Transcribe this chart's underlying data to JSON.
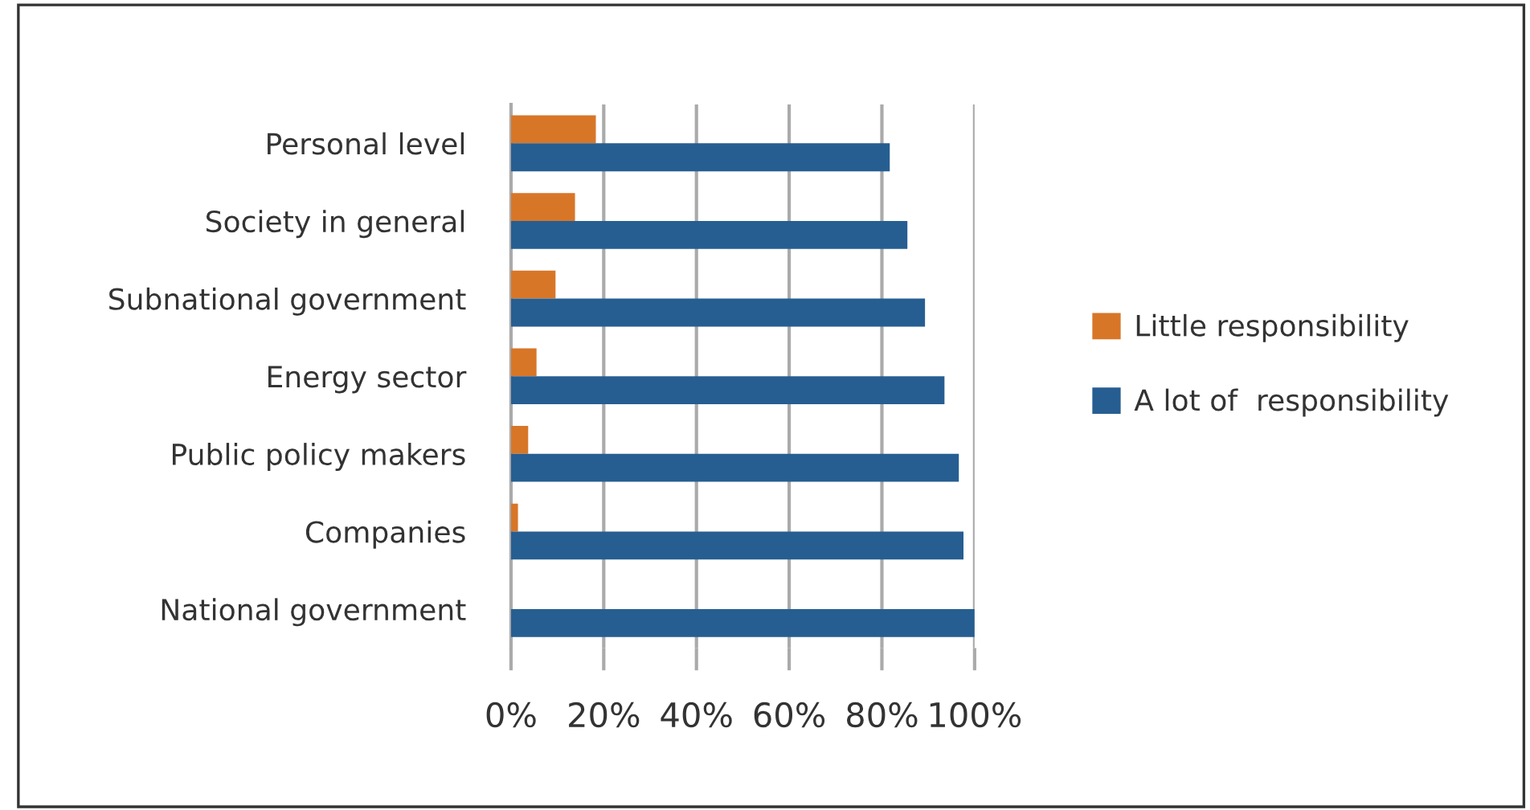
{
  "chart_data": {
    "type": "bar",
    "orientation": "horizontal",
    "categories": [
      "Personal level",
      "Society in general",
      "Subnational government",
      "Energy sector",
      "Public policy makers",
      "Companies",
      "National government"
    ],
    "series": [
      {
        "name": "Little responsibility",
        "color": "#d87628",
        "values": [
          18.3,
          13.8,
          9.6,
          5.5,
          3.7,
          1.5,
          0
        ]
      },
      {
        "name": "A lot of  responsibility",
        "color": "#265e92",
        "values": [
          81.7,
          85.5,
          89.3,
          93.5,
          96.6,
          97.6,
          100
        ]
      }
    ],
    "xlim": [
      0,
      100
    ],
    "xticks": [
      {
        "value": 0,
        "label": "0%"
      },
      {
        "value": 20,
        "label": "20%"
      },
      {
        "value": 40,
        "label": "40%"
      },
      {
        "value": 60,
        "label": "60%"
      },
      {
        "value": 80,
        "label": "80%"
      },
      {
        "value": 100,
        "label": "100%"
      }
    ],
    "grid": "x",
    "legend": "right"
  }
}
